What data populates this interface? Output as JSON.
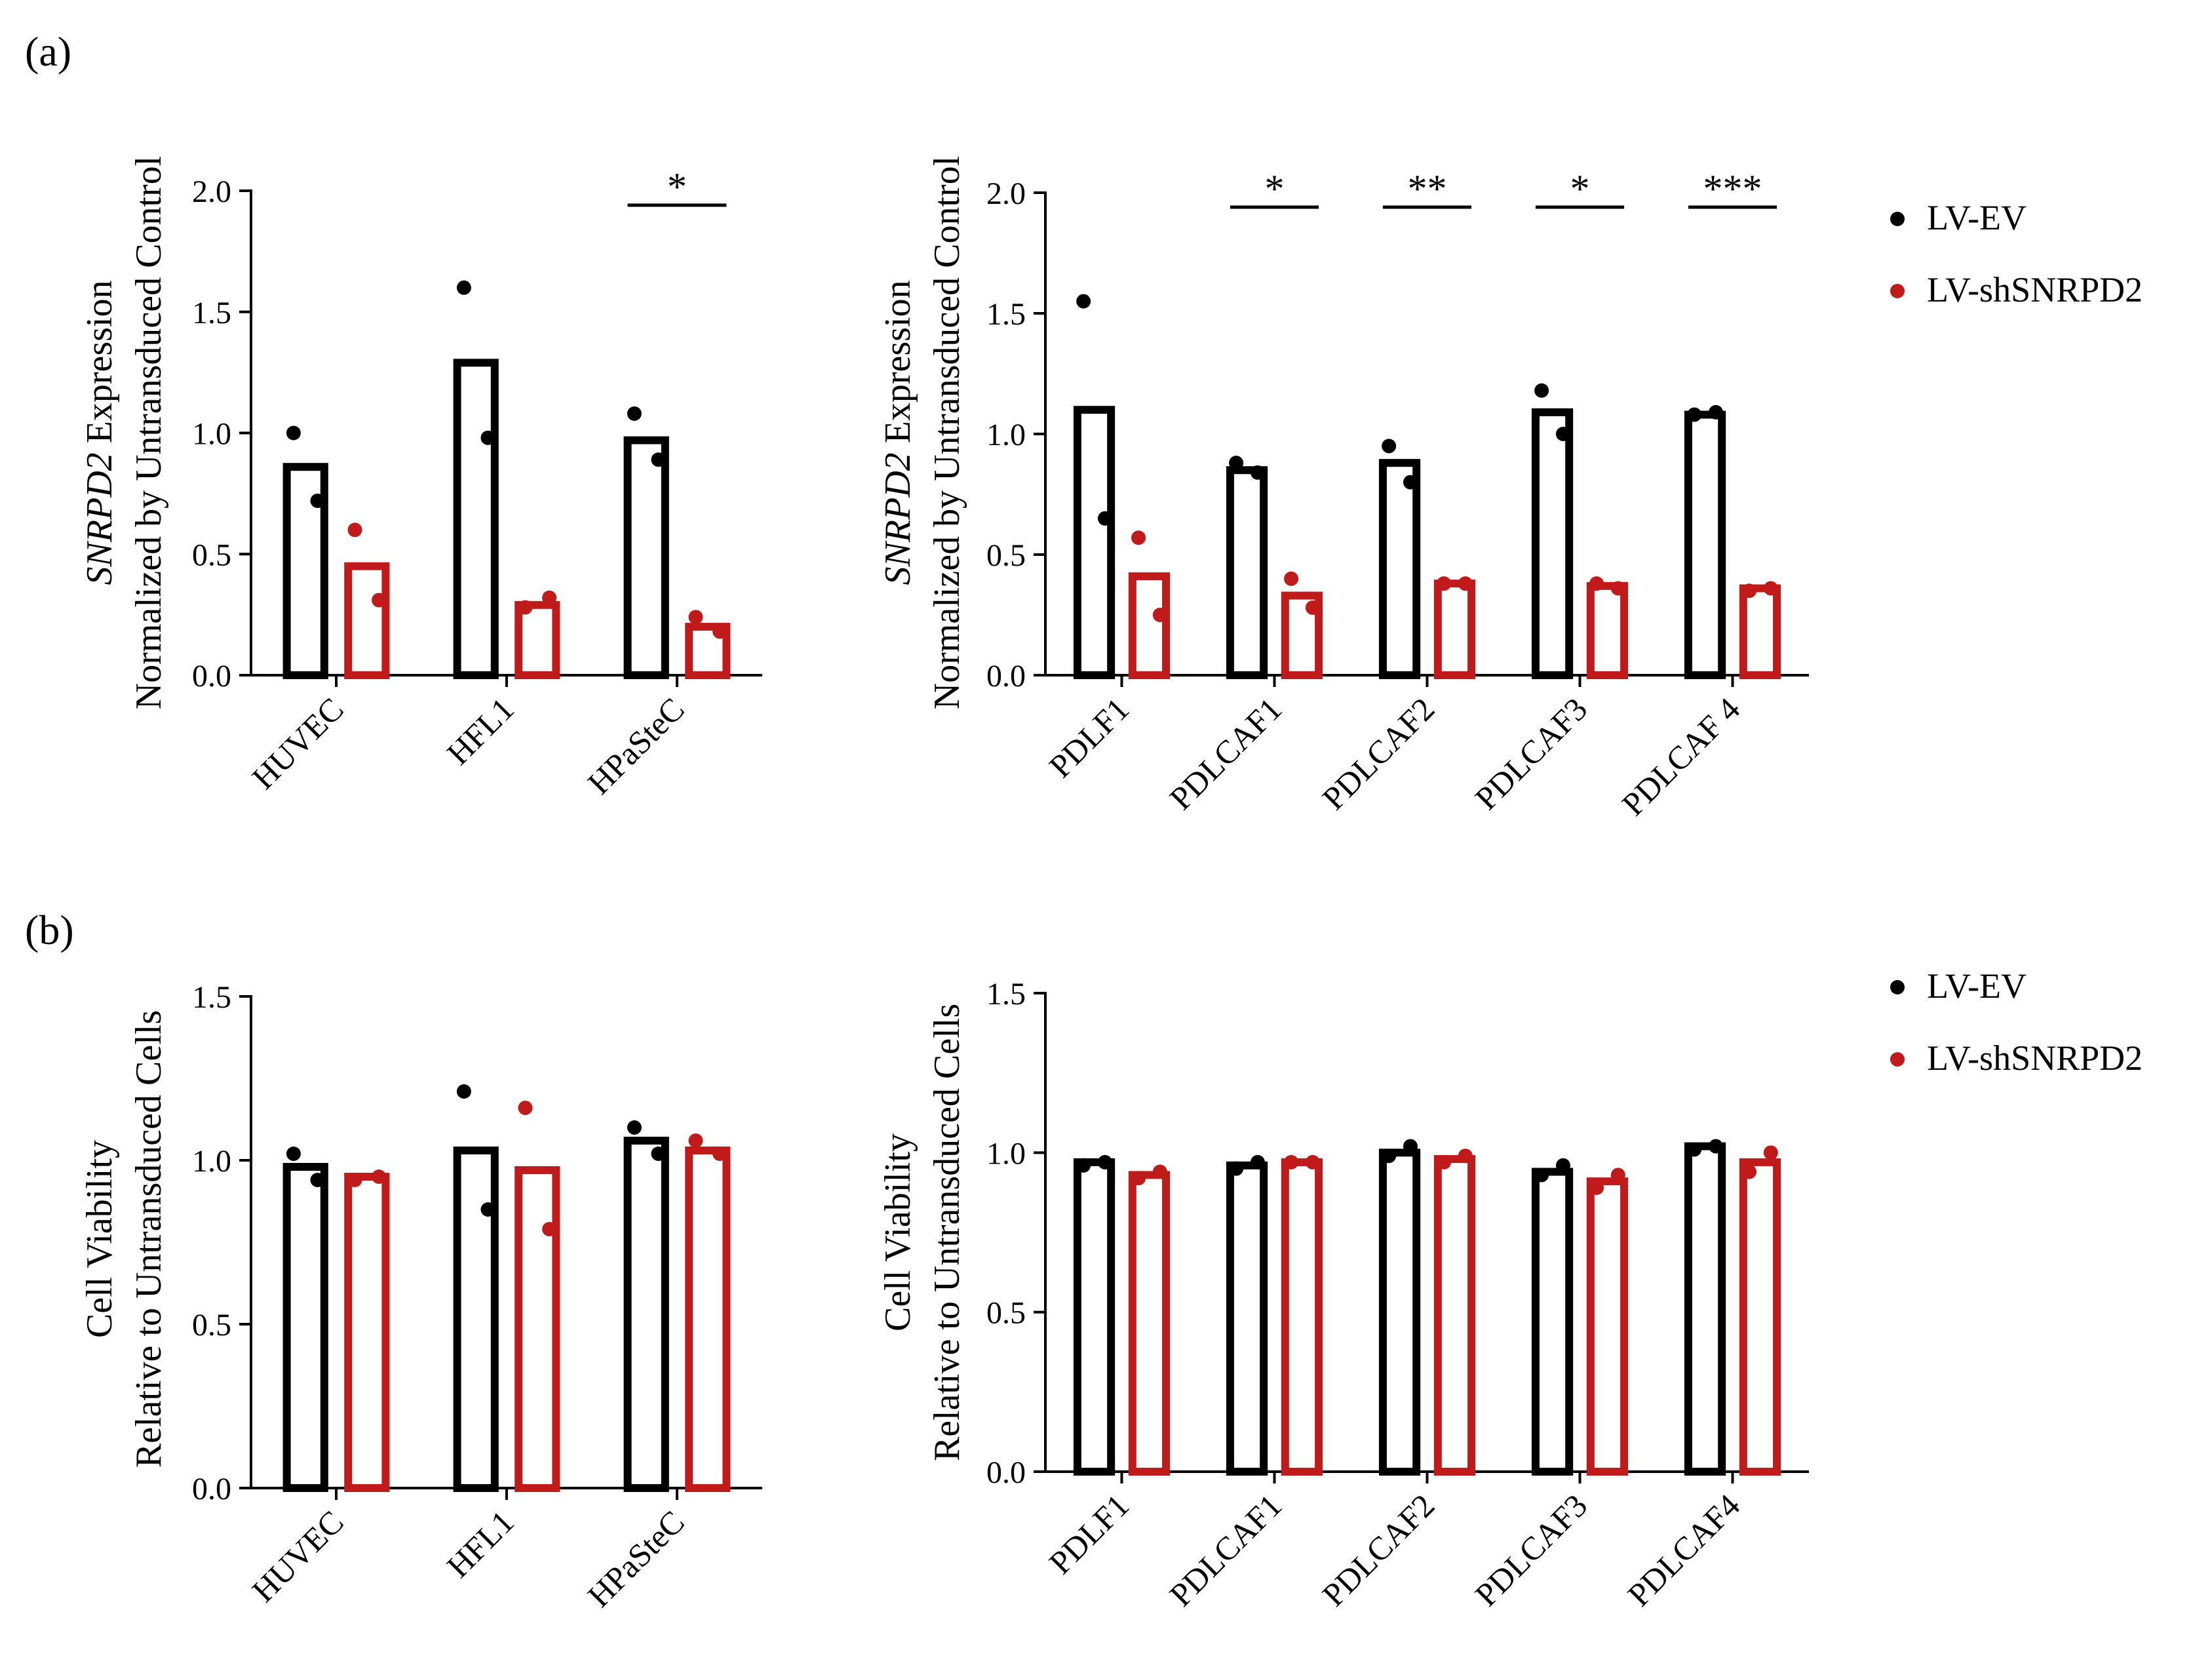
{
  "colors": {
    "lv_ev": "#000000",
    "lv_shsnrpd2": "#c01a1a"
  },
  "panel_labels": {
    "a": "(a)",
    "b": "(b)"
  },
  "legend": [
    "LV-EV",
    "LV-shSNRPD2"
  ],
  "chart_data": [
    {
      "id": "a-left",
      "type": "bar",
      "title": "",
      "ylabel_parts": [
        {
          "text": "SNRPD2",
          "italic": true
        },
        {
          "text": " Expression",
          "italic": false
        }
      ],
      "ylabel_line2": "Normalized by Untransduced Control",
      "ylim": [
        0,
        2.0
      ],
      "yticks": [
        "0.0",
        "0.5",
        "1.0",
        "1.5",
        "2.0"
      ],
      "categories": [
        "HUVEC",
        "HFL1",
        "HPaSteC"
      ],
      "series": [
        {
          "name": "LV-EV",
          "values": [
            0.86,
            1.29,
            0.97
          ],
          "points": [
            [
              1.0,
              0.72
            ],
            [
              1.6,
              0.98
            ],
            [
              1.08,
              0.89
            ]
          ]
        },
        {
          "name": "LV-shSNRPD2",
          "values": [
            0.45,
            0.29,
            0.2
          ],
          "points": [
            [
              0.6,
              0.31
            ],
            [
              0.28,
              0.32
            ],
            [
              0.24,
              0.18
            ]
          ]
        }
      ],
      "significance": [
        {
          "category": "HPaSteC",
          "label": "*"
        }
      ]
    },
    {
      "id": "a-right",
      "type": "bar",
      "title": "",
      "ylabel_parts": [
        {
          "text": "SNRPD2",
          "italic": true
        },
        {
          "text": " Expression",
          "italic": false
        }
      ],
      "ylabel_line2": "Normalized by Untransduced Control",
      "ylim": [
        0,
        2.0
      ],
      "yticks": [
        "0.0",
        "0.5",
        "1.0",
        "1.5",
        "2.0"
      ],
      "categories": [
        "PDLF1",
        "PDLCAF1",
        "PDLCAF2",
        "PDLCAF3",
        "PDLCAF 4"
      ],
      "series": [
        {
          "name": "LV-EV",
          "values": [
            1.1,
            0.85,
            0.88,
            1.09,
            1.08
          ],
          "points": [
            [
              1.55,
              0.65
            ],
            [
              0.88,
              0.84
            ],
            [
              0.95,
              0.8
            ],
            [
              1.18,
              1.0
            ],
            [
              1.08,
              1.09
            ]
          ]
        },
        {
          "name": "LV-shSNRPD2",
          "values": [
            0.41,
            0.33,
            0.38,
            0.37,
            0.36
          ],
          "points": [
            [
              0.57,
              0.25
            ],
            [
              0.4,
              0.28
            ],
            [
              0.38,
              0.38
            ],
            [
              0.38,
              0.36
            ],
            [
              0.35,
              0.36
            ]
          ]
        }
      ],
      "significance": [
        {
          "category": "PDLCAF1",
          "label": "*"
        },
        {
          "category": "PDLCAF2",
          "label": "**"
        },
        {
          "category": "PDLCAF3",
          "label": "*"
        },
        {
          "category": "PDLCAF 4",
          "label": "***"
        }
      ]
    },
    {
      "id": "b-left",
      "type": "bar",
      "title": "",
      "ylabel_parts": [
        {
          "text": "Cell Viability",
          "italic": false
        }
      ],
      "ylabel_line2": "Relative to Untransduced Cells",
      "ylim": [
        0,
        1.5
      ],
      "yticks": [
        "0.0",
        "0.5",
        "1.0",
        "1.5"
      ],
      "categories": [
        "HUVEC",
        "HFL1",
        "HPaSteC"
      ],
      "series": [
        {
          "name": "LV-EV",
          "values": [
            0.98,
            1.03,
            1.06
          ],
          "points": [
            [
              1.02,
              0.94
            ],
            [
              1.21,
              0.85
            ],
            [
              1.1,
              1.02
            ]
          ]
        },
        {
          "name": "LV-shSNRPD2",
          "values": [
            0.95,
            0.97,
            1.03
          ],
          "points": [
            [
              0.94,
              0.95
            ],
            [
              1.16,
              0.79
            ],
            [
              1.06,
              1.02
            ]
          ]
        }
      ],
      "significance": []
    },
    {
      "id": "b-right",
      "type": "bar",
      "title": "",
      "ylabel_parts": [
        {
          "text": "Cell Viability",
          "italic": false
        }
      ],
      "ylabel_line2": "Relative to Untransduced Cells",
      "ylim": [
        0,
        1.5
      ],
      "yticks": [
        "0.0",
        "0.5",
        "1.0",
        "1.5"
      ],
      "categories": [
        "PDLF1",
        "PDLCAF1",
        "PDLCAF2",
        "PDLCAF3",
        "PDLCAF4"
      ],
      "series": [
        {
          "name": "LV-EV",
          "values": [
            0.97,
            0.96,
            1.0,
            0.94,
            1.02
          ],
          "points": [
            [
              0.96,
              0.97
            ],
            [
              0.95,
              0.97
            ],
            [
              0.99,
              1.02
            ],
            [
              0.93,
              0.96
            ],
            [
              1.01,
              1.02
            ]
          ]
        },
        {
          "name": "LV-shSNRPD2",
          "values": [
            0.93,
            0.97,
            0.98,
            0.91,
            0.97
          ],
          "points": [
            [
              0.92,
              0.94
            ],
            [
              0.97,
              0.97
            ],
            [
              0.97,
              0.99
            ],
            [
              0.89,
              0.93
            ],
            [
              0.94,
              1.0
            ]
          ]
        }
      ],
      "significance": []
    }
  ]
}
